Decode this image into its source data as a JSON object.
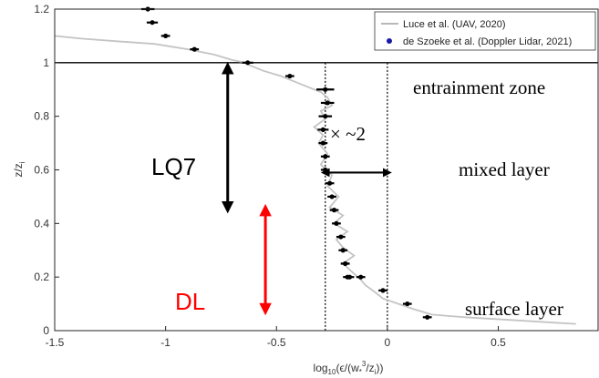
{
  "chart_data": {
    "type": "scatter",
    "xlim": [
      -1.5,
      0.95
    ],
    "ylim": [
      0,
      1.2
    ],
    "xticks": [
      -1.5,
      -1,
      -0.5,
      0,
      0.5
    ],
    "xtick_labels": [
      "-1.5",
      "-1",
      "-0.5",
      "0",
      "0.5"
    ],
    "yticks": [
      0,
      0.2,
      0.4,
      0.6,
      0.8,
      1,
      1.2
    ],
    "ytick_labels": [
      "0",
      "0.2",
      "0.4",
      "0.6",
      "0.8",
      "1",
      "1.2"
    ],
    "xlabel": {
      "main": "log",
      "sub": "10",
      "paren": "(ϵ/(w",
      "star": "*",
      "cube": "3",
      "tail": "/z",
      "zi": "i",
      "close": "))"
    },
    "ylabel": {
      "main": "z/z",
      "sub": "i"
    },
    "grid": false,
    "legend": {
      "placement": "top-right",
      "entries": [
        {
          "name": "Luce et al. (UAV, 2020)",
          "color": "#b8b8b8",
          "marker": "line"
        },
        {
          "name": "de Szoeke et al. (Doppler Lidar, 2021)",
          "color": "#1a1aa6",
          "marker": "dot"
        }
      ]
    },
    "series": [
      {
        "name": "Luce et al. (UAV, 2020)",
        "color": "#c4c4c4",
        "x": [
          -1.5,
          -1.38,
          -1.22,
          -1.05,
          -0.9,
          -0.78,
          -0.7,
          -0.64,
          -0.62,
          -0.56,
          -0.48,
          -0.42,
          -0.36,
          -0.3,
          -0.27,
          -0.25,
          -0.3,
          -0.28,
          -0.33,
          -0.29,
          -0.31,
          -0.27,
          -0.3,
          -0.25,
          -0.27,
          -0.22,
          -0.26,
          -0.2,
          -0.24,
          -0.18,
          -0.23,
          -0.2,
          -0.15,
          -0.2,
          -0.16,
          -0.12,
          -0.1,
          -0.05,
          -0.02,
          0.05,
          0.12,
          0.2,
          0.35,
          0.55,
          0.75,
          0.85
        ],
        "y": [
          1.1,
          1.09,
          1.08,
          1.07,
          1.05,
          1.03,
          1.01,
          1.0,
          0.99,
          0.97,
          0.95,
          0.93,
          0.91,
          0.89,
          0.87,
          0.84,
          0.82,
          0.79,
          0.76,
          0.73,
          0.7,
          0.66,
          0.62,
          0.58,
          0.54,
          0.5,
          0.46,
          0.43,
          0.4,
          0.37,
          0.34,
          0.31,
          0.28,
          0.25,
          0.22,
          0.19,
          0.17,
          0.14,
          0.12,
          0.1,
          0.08,
          0.06,
          0.05,
          0.04,
          0.03,
          0.025
        ]
      },
      {
        "name": "de Szoeke et al. (Doppler Lidar, 2021)",
        "color": "#000000",
        "x": [
          -1.08,
          -1.06,
          -1.0,
          -0.87,
          -0.63,
          -0.44,
          -0.28,
          -0.27,
          -0.28,
          -0.29,
          -0.29,
          -0.28,
          -0.28,
          -0.26,
          -0.25,
          -0.24,
          -0.23,
          -0.21,
          -0.2,
          -0.19,
          -0.18,
          -0.19,
          -0.17,
          -0.12,
          -0.02,
          0.09,
          0.18
        ],
        "y": [
          1.2,
          1.15,
          1.1,
          1.05,
          1.0,
          0.95,
          0.9,
          0.85,
          0.8,
          0.75,
          0.7,
          0.65,
          0.6,
          0.55,
          0.5,
          0.45,
          0.4,
          0.35,
          0.3,
          0.25,
          0.2,
          0.25,
          0.2,
          0.2,
          0.15,
          0.1,
          0.05
        ],
        "xerr": [
          0.03,
          0.025,
          0.02,
          0.02,
          0.025,
          0.02,
          0.04,
          0.03,
          0.03,
          0.025,
          0.02,
          0.02,
          0.02,
          0.02,
          0.02,
          0.02,
          0.02,
          0.02,
          0.02,
          0.02,
          0.02,
          0.02,
          0.02,
          0.02,
          0.02,
          0.02,
          0.02
        ]
      }
    ],
    "reference_lines": [
      {
        "kind": "horizontal",
        "y": 1.0,
        "style": "solid"
      },
      {
        "kind": "vertical",
        "x": -0.28,
        "style": "dotted"
      },
      {
        "kind": "vertical",
        "x": 0.0,
        "style": "dotted"
      }
    ],
    "annotations": {
      "entrainment": "entrainment zone",
      "mixed": "mixed layer",
      "surface": "surface layer",
      "factor": "× ~2",
      "lq7": "LQ7",
      "dl": "DL"
    },
    "arrows": [
      {
        "name": "lq7-range",
        "x": -0.72,
        "y_from": 0.46,
        "y_to": 0.98,
        "color": "#000000"
      },
      {
        "name": "dl-range",
        "x": -0.55,
        "y_from": 0.08,
        "y_to": 0.45,
        "color": "#ff0000"
      },
      {
        "name": "factor-span",
        "y": 0.59,
        "x_from": -0.28,
        "x_to": 0.0,
        "color": "#000000"
      }
    ]
  }
}
